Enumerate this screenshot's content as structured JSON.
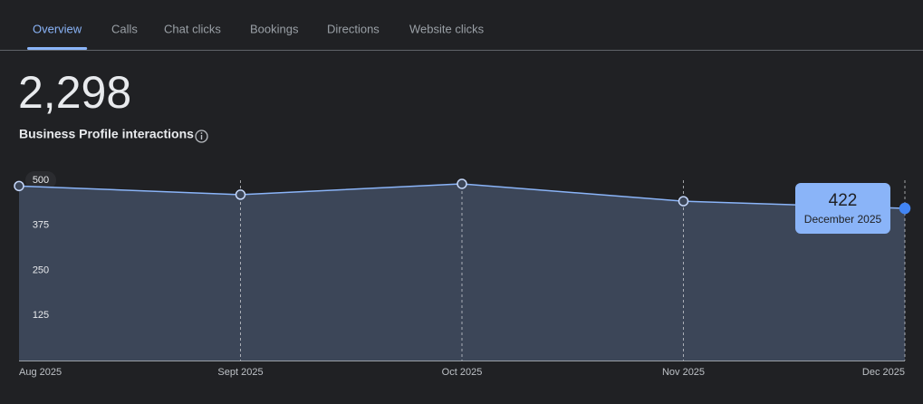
{
  "tabs": [
    "Overview",
    "Calls",
    "Chat clicks",
    "Bookings",
    "Directions",
    "Website clicks"
  ],
  "active_tab": 0,
  "metric": {
    "total": "2,298",
    "label": "Business Profile interactions"
  },
  "chart_data": {
    "type": "area",
    "categories": [
      "Aug 2025",
      "Sept 2025",
      "Oct 2025",
      "Nov 2025",
      "Dec 2025"
    ],
    "values": [
      484,
      460,
      490,
      442,
      422
    ],
    "color": "#8ab4f8",
    "fill": "#3c4658",
    "ylim": [
      0,
      500
    ],
    "yticks": [
      125,
      250,
      375,
      500
    ],
    "tooltip": {
      "index": 4,
      "label": "December 2025"
    }
  }
}
